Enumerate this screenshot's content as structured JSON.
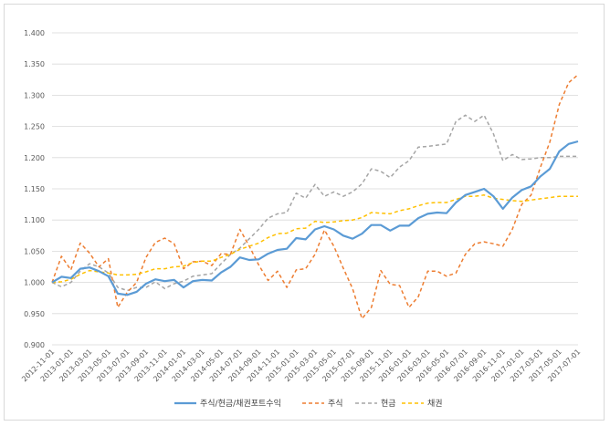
{
  "chart_data": {
    "type": "line",
    "title": "",
    "xlabel": "",
    "ylabel": "",
    "ylim": [
      0.9,
      1.4
    ],
    "y_ticks": [
      "0.900",
      "0.950",
      "1.000",
      "1.050",
      "1.100",
      "1.150",
      "1.200",
      "1.250",
      "1.300",
      "1.350",
      "1.400"
    ],
    "y_tick_values": [
      0.9,
      0.95,
      1.0,
      1.05,
      1.1,
      1.15,
      1.2,
      1.25,
      1.3,
      1.35,
      1.4
    ],
    "grid": "horizontal",
    "legend_position": "bottom",
    "x_tick_labels": [
      "2012-11-01",
      "2013-01-01",
      "2013-03-01",
      "2013-05-01",
      "2013-07-01",
      "2013-09-01",
      "2013-11-01",
      "2014-01-01",
      "2014-03-01",
      "2014-05-01",
      "2014-07-01",
      "2014-09-01",
      "2014-11-01",
      "2015-01-01",
      "2015-03-01",
      "2015-05-01",
      "2015-07-01",
      "2015-09-01",
      "2015-11-01",
      "2016-01-01",
      "2016-03-01",
      "2016-05-01",
      "2016-07-01",
      "2016-09-01",
      "2016-11-01",
      "2017-01-01",
      "2017-03-01",
      "2017-05-01",
      "2017-07-01"
    ],
    "x": [
      "2012-11-01",
      "2012-12-01",
      "2013-01-01",
      "2013-02-01",
      "2013-03-01",
      "2013-04-01",
      "2013-05-01",
      "2013-06-01",
      "2013-07-01",
      "2013-08-01",
      "2013-09-01",
      "2013-10-01",
      "2013-11-01",
      "2013-12-01",
      "2014-01-01",
      "2014-02-01",
      "2014-03-01",
      "2014-04-01",
      "2014-05-01",
      "2014-06-01",
      "2014-07-01",
      "2014-08-01",
      "2014-09-01",
      "2014-10-01",
      "2014-11-01",
      "2014-12-01",
      "2015-01-01",
      "2015-02-01",
      "2015-03-01",
      "2015-04-01",
      "2015-05-01",
      "2015-06-01",
      "2015-07-01",
      "2015-08-01",
      "2015-09-01",
      "2015-10-01",
      "2015-11-01",
      "2015-12-01",
      "2016-01-01",
      "2016-02-01",
      "2016-03-01",
      "2016-04-01",
      "2016-05-01",
      "2016-06-01",
      "2016-07-01",
      "2016-08-01",
      "2016-09-01",
      "2016-10-01",
      "2016-11-01",
      "2016-12-01",
      "2017-01-01",
      "2017-02-01",
      "2017-03-01",
      "2017-04-01",
      "2017-05-01",
      "2017-06-01",
      "2017-07-01"
    ],
    "series": [
      {
        "name": "주식/현금/채권포트수익",
        "color": "#5b9bd5",
        "dash": "solid",
        "values": [
          1.0,
          1.009,
          1.007,
          1.022,
          1.024,
          1.018,
          1.01,
          0.982,
          0.98,
          0.985,
          0.998,
          1.005,
          1.002,
          1.004,
          0.992,
          1.002,
          1.004,
          1.003,
          1.016,
          1.025,
          1.04,
          1.036,
          1.037,
          1.046,
          1.052,
          1.054,
          1.071,
          1.069,
          1.085,
          1.09,
          1.085,
          1.075,
          1.07,
          1.078,
          1.092,
          1.092,
          1.083,
          1.091,
          1.091,
          1.103,
          1.11,
          1.112,
          1.111,
          1.128,
          1.14,
          1.145,
          1.15,
          1.138,
          1.118,
          1.136,
          1.148,
          1.154,
          1.17,
          1.182,
          1.21,
          1.222,
          1.226
        ]
      },
      {
        "name": "주식",
        "color": "#ed7d31",
        "dash": "dash",
        "values": [
          1.0,
          1.042,
          1.02,
          1.063,
          1.047,
          1.025,
          1.038,
          0.96,
          0.984,
          1.0,
          1.04,
          1.064,
          1.071,
          1.062,
          1.022,
          1.033,
          1.034,
          1.027,
          1.046,
          1.045,
          1.085,
          1.058,
          1.028,
          1.003,
          1.018,
          0.992,
          1.02,
          1.022,
          1.045,
          1.084,
          1.058,
          1.023,
          0.99,
          0.942,
          0.96,
          1.019,
          0.997,
          0.995,
          0.96,
          0.977,
          1.018,
          1.018,
          1.01,
          1.015,
          1.045,
          1.062,
          1.065,
          1.062,
          1.058,
          1.085,
          1.125,
          1.14,
          1.185,
          1.225,
          1.285,
          1.32,
          1.333
        ]
      },
      {
        "name": "현금",
        "color": "#a5a5a5",
        "dash": "dash",
        "values": [
          1.0,
          0.993,
          1.0,
          1.018,
          1.03,
          1.025,
          1.015,
          0.992,
          0.987,
          0.992,
          0.992,
          1.001,
          0.99,
          0.998,
          1.002,
          1.01,
          1.012,
          1.014,
          1.03,
          1.045,
          1.055,
          1.07,
          1.085,
          1.103,
          1.11,
          1.112,
          1.143,
          1.135,
          1.157,
          1.138,
          1.145,
          1.138,
          1.145,
          1.158,
          1.182,
          1.178,
          1.168,
          1.185,
          1.195,
          1.217,
          1.218,
          1.22,
          1.222,
          1.258,
          1.268,
          1.258,
          1.268,
          1.238,
          1.195,
          1.205,
          1.197,
          1.198,
          1.2,
          1.2,
          1.202,
          1.202,
          1.202
        ]
      },
      {
        "name": "채권",
        "color": "#ffc000",
        "dash": "dash",
        "values": [
          1.0,
          1.001,
          1.005,
          1.013,
          1.019,
          1.017,
          1.015,
          1.012,
          1.012,
          1.013,
          1.017,
          1.022,
          1.022,
          1.025,
          1.026,
          1.032,
          1.034,
          1.034,
          1.04,
          1.045,
          1.053,
          1.058,
          1.063,
          1.072,
          1.078,
          1.079,
          1.086,
          1.087,
          1.098,
          1.096,
          1.097,
          1.099,
          1.1,
          1.104,
          1.112,
          1.111,
          1.11,
          1.115,
          1.118,
          1.123,
          1.127,
          1.128,
          1.128,
          1.133,
          1.138,
          1.138,
          1.14,
          1.135,
          1.133,
          1.131,
          1.13,
          1.132,
          1.134,
          1.136,
          1.138,
          1.138,
          1.138
        ]
      }
    ]
  }
}
